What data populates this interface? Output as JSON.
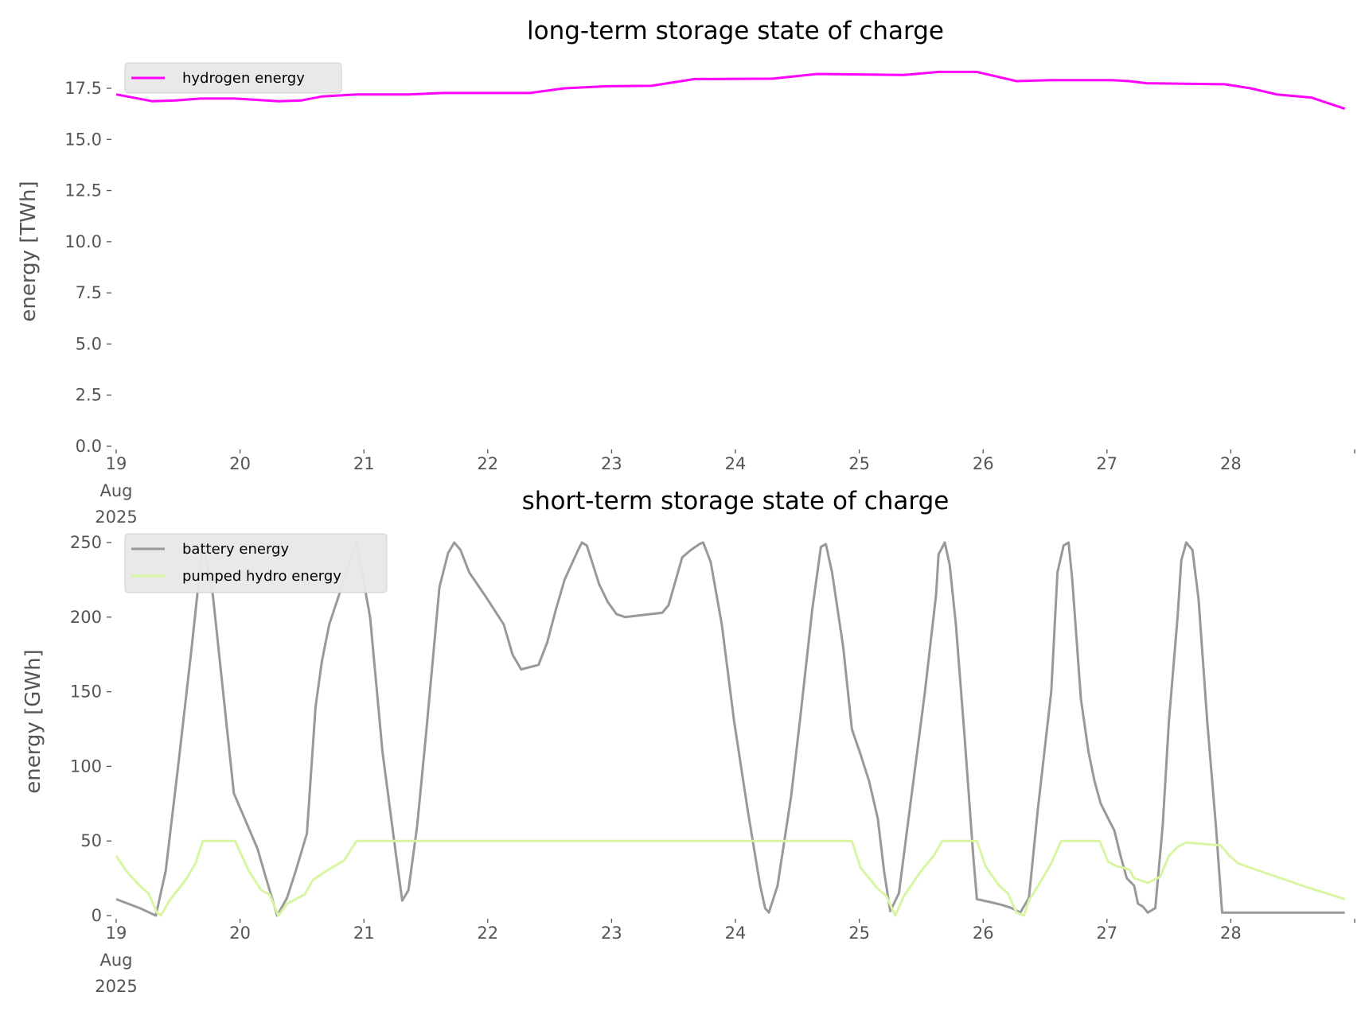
{
  "chart_data": [
    {
      "type": "line",
      "title": "long-term storage state of charge",
      "ylabel": "energy [TWh]",
      "xlabel": "",
      "x_unit": "days since 19 Aug 2025 00:00",
      "xlim": [
        0,
        10
      ],
      "ylim": [
        0,
        17.5
      ],
      "yticks": [
        "0.0",
        "2.5",
        "5.0",
        "7.5",
        "10.0",
        "12.5",
        "15.0",
        "17.5"
      ],
      "ytick_values": [
        0,
        2.5,
        5,
        7.5,
        10,
        12.5,
        15,
        17.5
      ],
      "xticks": [
        "19",
        "20",
        "21",
        "22",
        "23",
        "24",
        "25",
        "26",
        "27",
        "28"
      ],
      "xtick_sub": [
        "Aug",
        "2025"
      ],
      "legend_position": "top-left",
      "grid": false,
      "series": [
        {
          "name": "hydrogen energy",
          "color": "#ff00ff",
          "points": [
            [
              0,
              17.2
            ],
            [
              0.29,
              16.87
            ],
            [
              0.47,
              16.9
            ],
            [
              0.68,
              17.0
            ],
            [
              0.96,
              17.0
            ],
            [
              1.31,
              16.87
            ],
            [
              1.49,
              16.9
            ],
            [
              1.66,
              17.1
            ],
            [
              1.94,
              17.2
            ],
            [
              2.36,
              17.2
            ],
            [
              2.64,
              17.27
            ],
            [
              3.34,
              17.27
            ],
            [
              3.62,
              17.5
            ],
            [
              3.97,
              17.6
            ],
            [
              4.32,
              17.62
            ],
            [
              4.67,
              17.95
            ],
            [
              5.3,
              17.97
            ],
            [
              5.66,
              18.2
            ],
            [
              6.36,
              18.15
            ],
            [
              6.64,
              18.3
            ],
            [
              6.95,
              18.3
            ],
            [
              7.27,
              17.85
            ],
            [
              7.55,
              17.9
            ],
            [
              8.04,
              17.9
            ],
            [
              8.18,
              17.85
            ],
            [
              8.32,
              17.75
            ],
            [
              8.95,
              17.7
            ],
            [
              9.16,
              17.5
            ],
            [
              9.37,
              17.2
            ],
            [
              9.65,
              17.05
            ],
            [
              9.92,
              16.5
            ]
          ]
        }
      ]
    },
    {
      "type": "line",
      "title": "short-term storage state of charge",
      "ylabel": "energy [GWh]",
      "xlabel": "",
      "x_unit": "days since 19 Aug 2025 00:00",
      "xlim": [
        0,
        10
      ],
      "ylim": [
        0,
        250
      ],
      "yticks": [
        "0",
        "50",
        "100",
        "150",
        "200",
        "250"
      ],
      "ytick_values": [
        0,
        50,
        100,
        150,
        200,
        250
      ],
      "xticks": [
        "19",
        "20",
        "21",
        "22",
        "23",
        "24",
        "25",
        "26",
        "27",
        "28"
      ],
      "xtick_sub": [
        "Aug",
        "2025"
      ],
      "legend_position": "top-left",
      "grid": false,
      "series": [
        {
          "name": "battery energy",
          "color": "#999999",
          "points": [
            [
              0,
              11
            ],
            [
              0.19,
              5
            ],
            [
              0.32,
              0
            ],
            [
              0.4,
              30
            ],
            [
              0.5,
              100
            ],
            [
              0.61,
              180
            ],
            [
              0.7,
              250
            ],
            [
              0.78,
              215
            ],
            [
              0.85,
              160
            ],
            [
              0.95,
              82
            ],
            [
              1.14,
              45
            ],
            [
              1.21,
              25
            ],
            [
              1.3,
              0
            ],
            [
              1.38,
              12
            ],
            [
              1.45,
              30
            ],
            [
              1.54,
              55
            ],
            [
              1.61,
              140
            ],
            [
              1.66,
              170
            ],
            [
              1.72,
              195
            ],
            [
              1.84,
              225
            ],
            [
              1.94,
              250
            ],
            [
              2.05,
              200
            ],
            [
              2.15,
              110
            ],
            [
              2.26,
              40
            ],
            [
              2.31,
              10
            ],
            [
              2.36,
              17
            ],
            [
              2.43,
              60
            ],
            [
              2.5,
              120
            ],
            [
              2.61,
              220
            ],
            [
              2.68,
              243
            ],
            [
              2.73,
              250
            ],
            [
              2.78,
              245
            ],
            [
              2.85,
              230
            ],
            [
              2.99,
              213
            ],
            [
              3.13,
              195
            ],
            [
              3.2,
              175
            ],
            [
              3.27,
              165
            ],
            [
              3.41,
              168
            ],
            [
              3.48,
              183
            ],
            [
              3.55,
              205
            ],
            [
              3.62,
              225
            ],
            [
              3.73,
              245
            ],
            [
              3.76,
              250
            ],
            [
              3.8,
              248
            ],
            [
              3.9,
              222
            ],
            [
              3.97,
              210
            ],
            [
              4.04,
              202
            ],
            [
              4.11,
              200
            ],
            [
              4.41,
              203
            ],
            [
              4.46,
              208
            ],
            [
              4.57,
              240
            ],
            [
              4.64,
              245
            ],
            [
              4.71,
              249
            ],
            [
              4.74,
              250
            ],
            [
              4.8,
              237
            ],
            [
              4.89,
              195
            ],
            [
              4.99,
              130
            ],
            [
              5.1,
              70
            ],
            [
              5.2,
              20
            ],
            [
              5.24,
              5
            ],
            [
              5.27,
              2
            ],
            [
              5.34,
              20
            ],
            [
              5.45,
              80
            ],
            [
              5.52,
              130
            ],
            [
              5.62,
              205
            ],
            [
              5.69,
              247
            ],
            [
              5.73,
              249
            ],
            [
              5.78,
              230
            ],
            [
              5.87,
              180
            ],
            [
              5.94,
              125
            ],
            [
              6.01,
              108
            ],
            [
              6.08,
              90
            ],
            [
              6.15,
              65
            ],
            [
              6.2,
              30
            ],
            [
              6.25,
              3
            ],
            [
              6.32,
              15
            ],
            [
              6.39,
              60
            ],
            [
              6.53,
              150
            ],
            [
              6.62,
              215
            ],
            [
              6.64,
              242
            ],
            [
              6.69,
              250
            ],
            [
              6.73,
              235
            ],
            [
              6.78,
              195
            ],
            [
              6.85,
              120
            ],
            [
              6.92,
              40
            ],
            [
              6.95,
              11
            ],
            [
              7.06,
              9
            ],
            [
              7.16,
              7
            ],
            [
              7.23,
              5
            ],
            [
              7.3,
              2
            ],
            [
              7.37,
              12
            ],
            [
              7.44,
              70
            ],
            [
              7.55,
              150
            ],
            [
              7.6,
              230
            ],
            [
              7.65,
              248
            ],
            [
              7.69,
              250
            ],
            [
              7.72,
              225
            ],
            [
              7.79,
              145
            ],
            [
              7.85,
              110
            ],
            [
              7.9,
              90
            ],
            [
              7.95,
              75
            ],
            [
              8.01,
              65
            ],
            [
              8.06,
              57
            ],
            [
              8.11,
              40
            ],
            [
              8.16,
              25
            ],
            [
              8.22,
              20
            ],
            [
              8.25,
              8
            ],
            [
              8.29,
              6
            ],
            [
              8.33,
              2
            ],
            [
              8.39,
              5
            ],
            [
              8.45,
              60
            ],
            [
              8.5,
              130
            ],
            [
              8.57,
              200
            ],
            [
              8.6,
              238
            ],
            [
              8.64,
              250
            ],
            [
              8.69,
              245
            ],
            [
              8.74,
              212
            ],
            [
              8.81,
              130
            ],
            [
              8.88,
              60
            ],
            [
              8.93,
              2
            ],
            [
              9.92,
              2
            ]
          ]
        },
        {
          "name": "pumped hydro energy",
          "color": "#d8f5a2",
          "points": [
            [
              0,
              40
            ],
            [
              0.08,
              30
            ],
            [
              0.19,
              20
            ],
            [
              0.26,
              15
            ],
            [
              0.33,
              2
            ],
            [
              0.36,
              0
            ],
            [
              0.43,
              10
            ],
            [
              0.57,
              25
            ],
            [
              0.64,
              35
            ],
            [
              0.7,
              50
            ],
            [
              0.96,
              50
            ],
            [
              1.07,
              30
            ],
            [
              1.17,
              17
            ],
            [
              1.24,
              14
            ],
            [
              1.31,
              0
            ],
            [
              1.38,
              8
            ],
            [
              1.52,
              14
            ],
            [
              1.59,
              24
            ],
            [
              1.7,
              30
            ],
            [
              1.84,
              37
            ],
            [
              1.94,
              50
            ],
            [
              5.94,
              50
            ],
            [
              6.01,
              32
            ],
            [
              6.15,
              18
            ],
            [
              6.22,
              13
            ],
            [
              6.29,
              0
            ],
            [
              6.36,
              13
            ],
            [
              6.5,
              30
            ],
            [
              6.6,
              40
            ],
            [
              6.67,
              50
            ],
            [
              6.95,
              50
            ],
            [
              7.02,
              33
            ],
            [
              7.13,
              20
            ],
            [
              7.2,
              15
            ],
            [
              7.27,
              2
            ],
            [
              7.33,
              0
            ],
            [
              7.37,
              10
            ],
            [
              7.48,
              25
            ],
            [
              7.55,
              35
            ],
            [
              7.63,
              50
            ],
            [
              7.94,
              50
            ],
            [
              8.01,
              36
            ],
            [
              8.08,
              33
            ],
            [
              8.18,
              31
            ],
            [
              8.22,
              25
            ],
            [
              8.33,
              22
            ],
            [
              8.43,
              26
            ],
            [
              8.5,
              40
            ],
            [
              8.57,
              46
            ],
            [
              8.64,
              49
            ],
            [
              8.92,
              47
            ],
            [
              8.99,
              40
            ],
            [
              9.06,
              35
            ],
            [
              9.16,
              32
            ],
            [
              9.3,
              28
            ],
            [
              9.58,
              20
            ],
            [
              9.92,
              11
            ]
          ]
        }
      ]
    }
  ]
}
